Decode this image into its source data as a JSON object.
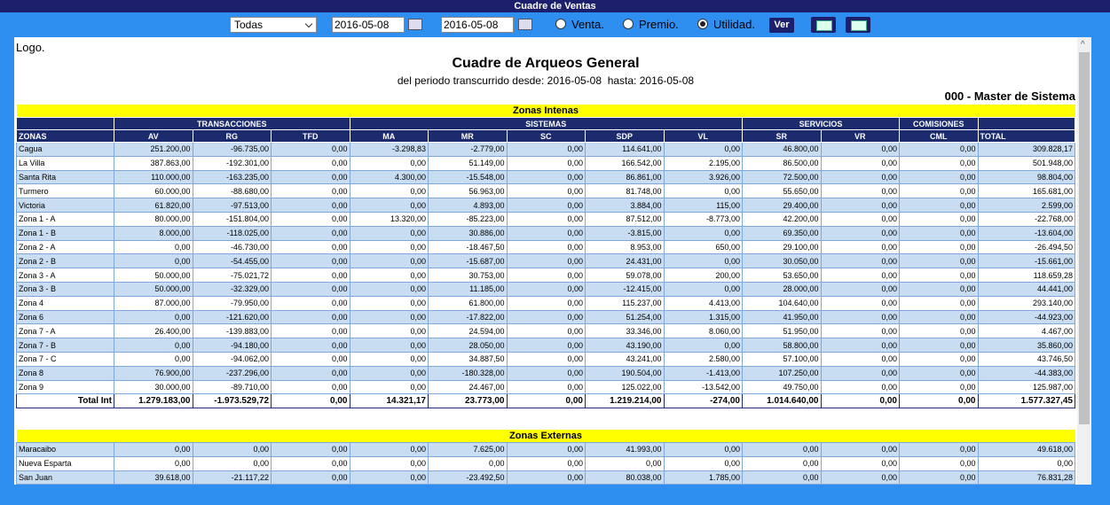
{
  "topbar": {
    "title": "Cuadre de Ventas"
  },
  "toolbar": {
    "select": "Todas",
    "date_from": "2016-05-08",
    "date_to": "2016-05-08",
    "radios": [
      "Venta.",
      "Premio.",
      "Utilidad."
    ],
    "button": "Ver"
  },
  "report": {
    "logo": "Logo.",
    "title": "Cuadre de Arqueos General",
    "subtitle": "del periodo transcurrido desde: 2016-05-08  hasta: 2016-05-08",
    "user": "000 - Master de Sistema",
    "groups": [
      {
        "label": "TRANSACCIONES",
        "span": 3
      },
      {
        "label": "SISTEMAS",
        "span": 5
      },
      {
        "label": "SERVICIOS",
        "span": 2
      },
      {
        "label": "COMISIONES",
        "span": 1
      }
    ],
    "zonas_header": "ZONAS",
    "total_header": "TOTAL",
    "columns": [
      "AV",
      "RG",
      "TFD",
      "MA",
      "MR",
      "SC",
      "SDP",
      "VL",
      "SR",
      "VR",
      "CML"
    ],
    "internas": {
      "title": "Zonas Intenas",
      "rows": [
        {
          "zona": "Cagua",
          "values": [
            "251.200,00",
            "-96.735,00",
            "0,00",
            "-3.298,83",
            "-2.779,00",
            "0,00",
            "114.641,00",
            "0,00",
            "46.800,00",
            "0,00",
            "0,00",
            "309.828,17"
          ]
        },
        {
          "zona": "La Villa",
          "values": [
            "387.863,00",
            "-192.301,00",
            "0,00",
            "0,00",
            "51.149,00",
            "0,00",
            "166.542,00",
            "2.195,00",
            "86.500,00",
            "0,00",
            "0,00",
            "501.948,00"
          ]
        },
        {
          "zona": "Santa Rita",
          "values": [
            "110.000,00",
            "-163.235,00",
            "0,00",
            "4.300,00",
            "-15.548,00",
            "0,00",
            "86.861,00",
            "3.926,00",
            "72.500,00",
            "0,00",
            "0,00",
            "98.804,00"
          ]
        },
        {
          "zona": "Turmero",
          "values": [
            "60.000,00",
            "-88.680,00",
            "0,00",
            "0,00",
            "56.963,00",
            "0,00",
            "81.748,00",
            "0,00",
            "55.650,00",
            "0,00",
            "0,00",
            "165.681,00"
          ]
        },
        {
          "zona": "Victoria",
          "values": [
            "61.820,00",
            "-97.513,00",
            "0,00",
            "0,00",
            "4.893,00",
            "0,00",
            "3.884,00",
            "115,00",
            "29.400,00",
            "0,00",
            "0,00",
            "2.599,00"
          ]
        },
        {
          "zona": "Zona 1 - A",
          "values": [
            "80.000,00",
            "-151.804,00",
            "0,00",
            "13.320,00",
            "-85.223,00",
            "0,00",
            "87.512,00",
            "-8.773,00",
            "42.200,00",
            "0,00",
            "0,00",
            "-22.768,00"
          ]
        },
        {
          "zona": "Zona 1 - B",
          "values": [
            "8.000,00",
            "-118.025,00",
            "0,00",
            "0,00",
            "30.886,00",
            "0,00",
            "-3.815,00",
            "0,00",
            "69.350,00",
            "0,00",
            "0,00",
            "-13.604,00"
          ]
        },
        {
          "zona": "Zona 2 - A",
          "values": [
            "0,00",
            "-46.730,00",
            "0,00",
            "0,00",
            "-18.467,50",
            "0,00",
            "8.953,00",
            "650,00",
            "29.100,00",
            "0,00",
            "0,00",
            "-26.494,50"
          ]
        },
        {
          "zona": "Zona 2 - B",
          "values": [
            "0,00",
            "-54.455,00",
            "0,00",
            "0,00",
            "-15.687,00",
            "0,00",
            "24.431,00",
            "0,00",
            "30.050,00",
            "0,00",
            "0,00",
            "-15.661,00"
          ]
        },
        {
          "zona": "Zona 3 - A",
          "values": [
            "50.000,00",
            "-75.021,72",
            "0,00",
            "0,00",
            "30.753,00",
            "0,00",
            "59.078,00",
            "200,00",
            "53.650,00",
            "0,00",
            "0,00",
            "118.659,28"
          ]
        },
        {
          "zona": "Zona 3 - B",
          "values": [
            "50.000,00",
            "-32.329,00",
            "0,00",
            "0,00",
            "11.185,00",
            "0,00",
            "-12.415,00",
            "0,00",
            "28.000,00",
            "0,00",
            "0,00",
            "44.441,00"
          ]
        },
        {
          "zona": "Zona 4",
          "values": [
            "87.000,00",
            "-79.950,00",
            "0,00",
            "0,00",
            "61.800,00",
            "0,00",
            "115.237,00",
            "4.413,00",
            "104.640,00",
            "0,00",
            "0,00",
            "293.140,00"
          ]
        },
        {
          "zona": "Zona 6",
          "values": [
            "0,00",
            "-121.620,00",
            "0,00",
            "0,00",
            "-17.822,00",
            "0,00",
            "51.254,00",
            "1.315,00",
            "41.950,00",
            "0,00",
            "0,00",
            "-44.923,00"
          ]
        },
        {
          "zona": "Zona 7 - A",
          "values": [
            "26.400,00",
            "-139.883,00",
            "0,00",
            "0,00",
            "24.594,00",
            "0,00",
            "33.346,00",
            "8.060,00",
            "51.950,00",
            "0,00",
            "0,00",
            "4.467,00"
          ]
        },
        {
          "zona": "Zona 7 - B",
          "values": [
            "0,00",
            "-94.180,00",
            "0,00",
            "0,00",
            "28.050,00",
            "0,00",
            "43.190,00",
            "0,00",
            "58.800,00",
            "0,00",
            "0,00",
            "35.860,00"
          ]
        },
        {
          "zona": "Zona 7 - C",
          "values": [
            "0,00",
            "-94.062,00",
            "0,00",
            "0,00",
            "34.887,50",
            "0,00",
            "43.241,00",
            "2.580,00",
            "57.100,00",
            "0,00",
            "0,00",
            "43.746,50"
          ]
        },
        {
          "zona": "Zona 8",
          "values": [
            "76.900,00",
            "-237.296,00",
            "0,00",
            "0,00",
            "-180.328,00",
            "0,00",
            "190.504,00",
            "-1.413,00",
            "107.250,00",
            "0,00",
            "0,00",
            "-44.383,00"
          ]
        },
        {
          "zona": "Zona 9",
          "values": [
            "30.000,00",
            "-89.710,00",
            "0,00",
            "0,00",
            "24.467,00",
            "0,00",
            "125.022,00",
            "-13.542,00",
            "49.750,00",
            "0,00",
            "0,00",
            "125.987,00"
          ]
        }
      ],
      "total": {
        "zona": "Total Int",
        "values": [
          "1.279.183,00",
          "-1.973.529,72",
          "0,00",
          "14.321,17",
          "23.773,00",
          "0,00",
          "1.219.214,00",
          "-274,00",
          "1.014.640,00",
          "0,00",
          "0,00",
          "1.577.327,45"
        ]
      }
    },
    "externas": {
      "title": "Zonas Externas",
      "rows": [
        {
          "zona": "Maracaibo",
          "values": [
            "0,00",
            "0,00",
            "0,00",
            "0,00",
            "7.625,00",
            "0,00",
            "41.993,00",
            "0,00",
            "0,00",
            "0,00",
            "0,00",
            "49.618,00"
          ]
        },
        {
          "zona": "Nueva Esparta",
          "values": [
            "0,00",
            "0,00",
            "0,00",
            "0,00",
            "0,00",
            "0,00",
            "0,00",
            "0,00",
            "0,00",
            "0,00",
            "0,00",
            "0,00"
          ]
        },
        {
          "zona": "San Juan",
          "values": [
            "39.618,00",
            "-21.117,22",
            "0,00",
            "0,00",
            "-23.492,50",
            "0,00",
            "80.038,00",
            "1.785,00",
            "0,00",
            "0,00",
            "0,00",
            "76.831,28"
          ]
        }
      ]
    }
  }
}
